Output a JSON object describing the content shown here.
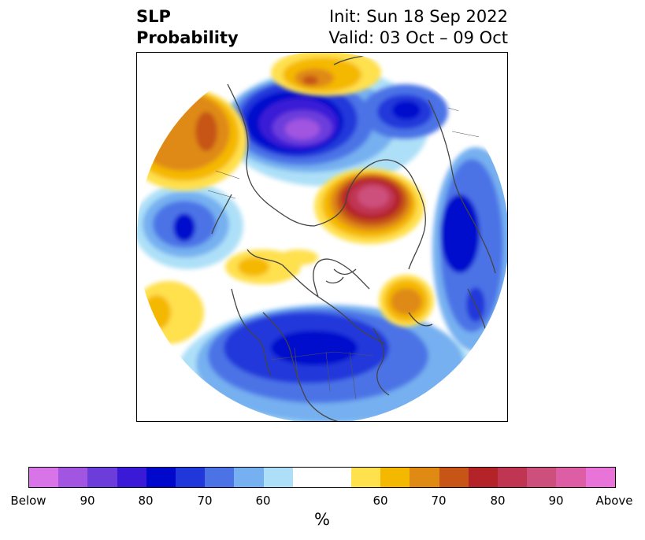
{
  "title": {
    "left_line1": "SLP",
    "left_line2": "Probability",
    "right_line1": "Init: Sun 18 Sep 2022",
    "right_line2": "Valid: 03 Oct – 09 Oct"
  },
  "colorbar": {
    "colors": [
      "#d873e8",
      "#a155e0",
      "#6d3ddb",
      "#3a1ad6",
      "#0008cc",
      "#2038da",
      "#4c73e6",
      "#76b0f0",
      "#ade0f8",
      "#ffffff",
      "#ffffff",
      "#ffe04d",
      "#f5b800",
      "#df8a12",
      "#c65516",
      "#b42327",
      "#c03552",
      "#cd4f7c",
      "#dd5ea5",
      "#e873d9"
    ],
    "labels": [
      "Below",
      "90",
      "80",
      "70",
      "60",
      "60",
      "70",
      "80",
      "90",
      "Above"
    ],
    "unit": "%"
  },
  "map": {
    "projection": "north polar stereographic",
    "outline_color": "#444444"
  }
}
